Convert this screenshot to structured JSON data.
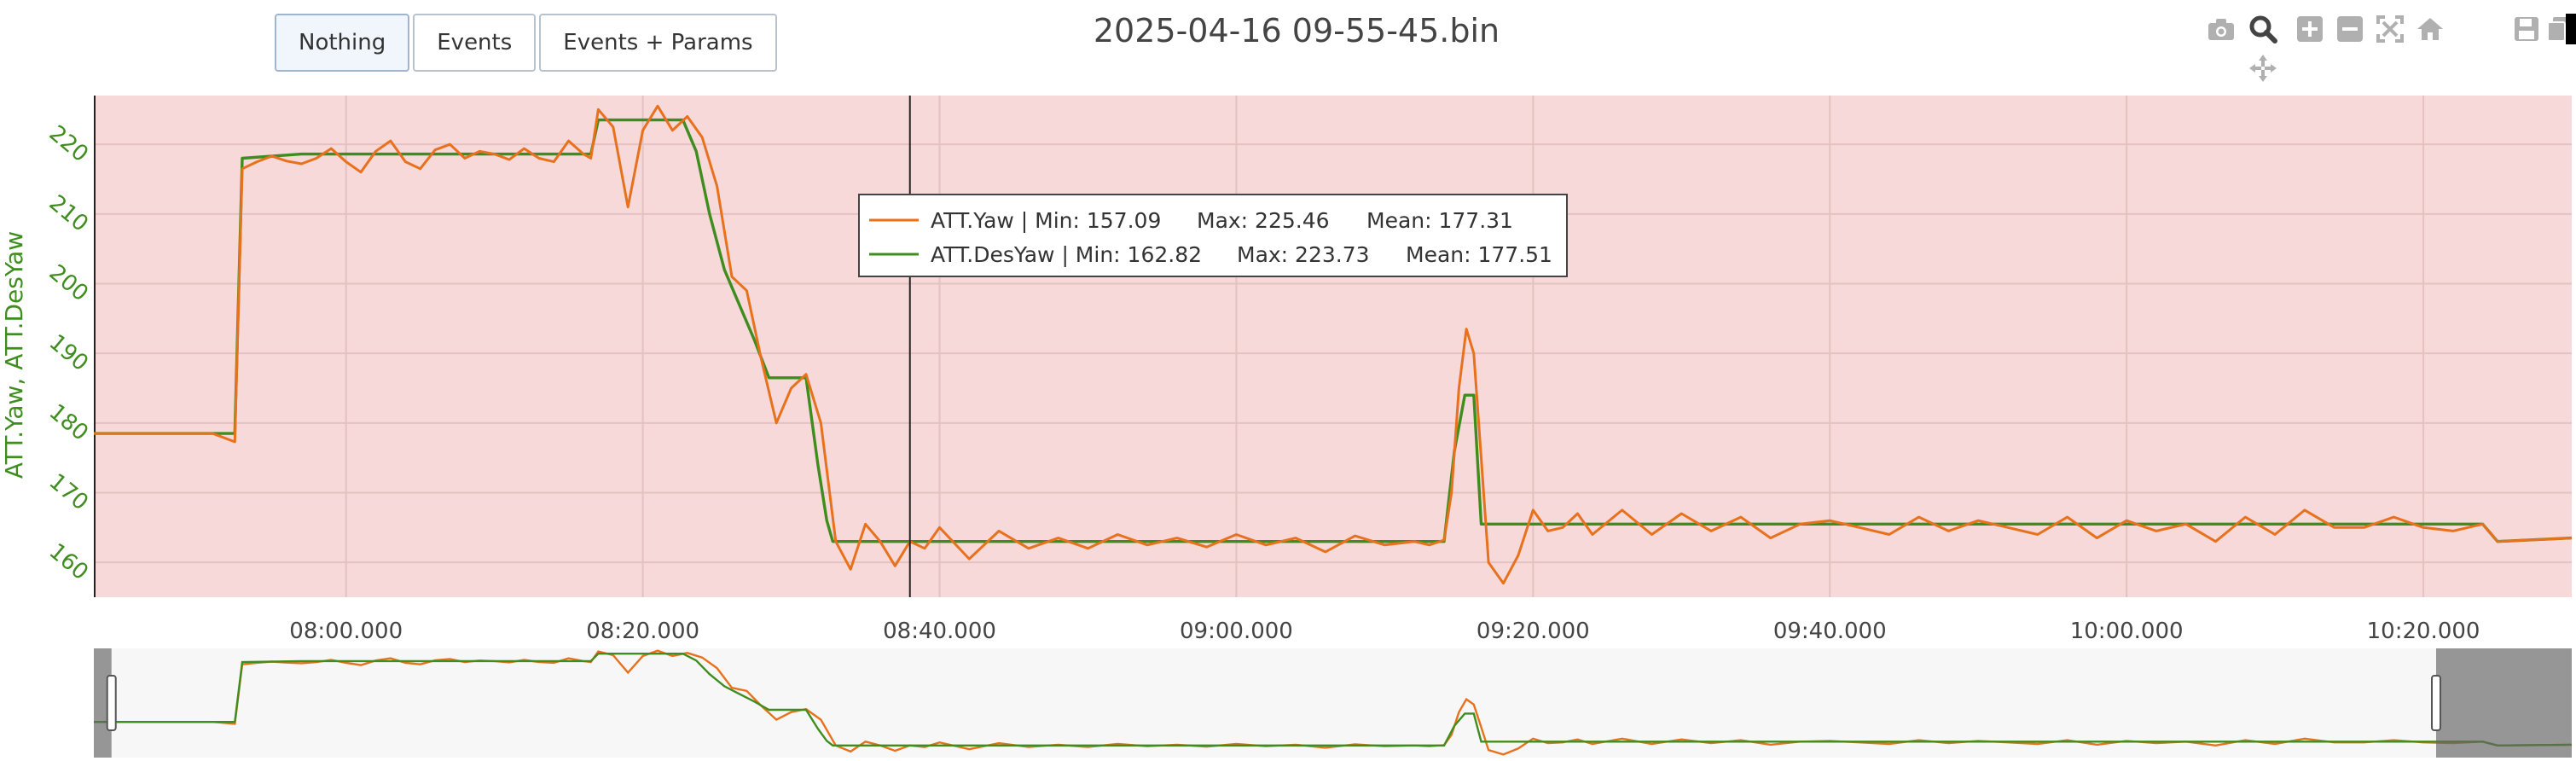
{
  "toolbar": {
    "buttons": [
      {
        "label": "Nothing",
        "active": true
      },
      {
        "label": "Events",
        "active": false
      },
      {
        "label": "Events + Params",
        "active": false
      }
    ]
  },
  "modebar": {
    "icons": [
      "camera-icon",
      "zoom-icon",
      "zoom-in-icon",
      "zoom-out-icon",
      "autoscale-icon",
      "home-icon",
      "save-icon",
      "copy-icon",
      "pan-icon"
    ]
  },
  "chart_data": {
    "type": "line",
    "title": "2025-04-16 09-55-45.bin",
    "xlabel": "",
    "ylabel": "ATT.Yaw, ATT.DesYaw",
    "x_unit": "seconds",
    "xlim": [
      466,
      1228
    ],
    "ylim": [
      155,
      227
    ],
    "x_tick_labels": [
      "08:00.000",
      "08:20.000",
      "08:40.000",
      "09:00.000",
      "09:20.000",
      "09:40.000",
      "10:00.000",
      "10:20.000"
    ],
    "x_tick_values": [
      480,
      500,
      520,
      540,
      560,
      580,
      600,
      620
    ],
    "y_ticks": [
      160,
      170,
      180,
      190,
      200,
      210,
      220
    ],
    "grid": true,
    "background": "#f6d9d8",
    "cursor_x": 518,
    "legend": {
      "placement": "top-center",
      "entries": [
        {
          "name": "ATT.Yaw",
          "min": "157.09",
          "max": "225.46",
          "mean": "177.31",
          "min_label": "Min:",
          "max_label": "Max:",
          "mean_label": "Mean:",
          "color": "#e8711d"
        },
        {
          "name": "ATT.DesYaw",
          "min": "162.82",
          "max": "223.73",
          "mean": "177.51",
          "min_label": "Min:",
          "max_label": "Max:",
          "mean_label": "Mean:",
          "color": "#3f8d1f"
        }
      ]
    },
    "series": [
      {
        "name": "ATT.DesYaw",
        "color": "#3f8d1f",
        "x": [
          463,
          472.5,
          473.0,
          477,
          490,
          496.5,
          497.0,
          502.7,
          503.6,
          504.5,
          505.5,
          506.3,
          507.5,
          508.5,
          510.0,
          511.0,
          511.8,
          512.4,
          512.8,
          554.0,
          554.7,
          555.4,
          556.0,
          556.5,
          572,
          620,
          624,
          625.0,
          630
        ],
        "y": [
          178.5,
          178.5,
          218.0,
          218.6,
          218.6,
          218.6,
          223.5,
          223.5,
          219.0,
          210.0,
          202.0,
          198.0,
          192.0,
          186.5,
          186.5,
          186.5,
          174.0,
          166.0,
          163.0,
          163.0,
          176.0,
          184.0,
          184.0,
          165.5,
          165.5,
          165.5,
          165.5,
          163.0,
          163.5
        ]
      },
      {
        "name": "ATT.Yaw",
        "color": "#e8711d",
        "x": [
          463,
          471,
          472.5,
          473.0,
          474,
          475,
          476,
          477,
          478,
          479,
          480,
          481,
          482,
          483,
          484,
          485,
          486,
          487,
          488,
          489,
          490,
          491,
          492,
          493,
          494,
          495,
          496,
          496.5,
          497.0,
          498,
          499,
          500,
          501,
          502,
          503,
          504,
          505,
          506,
          507,
          508,
          509,
          510,
          511,
          512,
          513,
          514,
          515,
          516,
          517,
          518,
          519,
          520,
          522,
          524,
          526,
          528,
          530,
          532,
          534,
          536,
          538,
          540,
          542,
          544,
          546,
          548,
          550,
          552,
          553,
          554,
          554.5,
          555,
          555.5,
          556.0,
          556.5,
          557,
          558,
          559,
          560,
          561,
          562,
          563,
          564,
          566,
          568,
          570,
          572,
          574,
          576,
          578,
          580,
          582,
          584,
          586,
          588,
          590,
          592,
          594,
          596,
          598,
          600,
          602,
          604,
          606,
          608,
          610,
          612,
          614,
          616,
          618,
          620,
          622,
          624,
          625,
          630
        ],
        "y": [
          178.5,
          178.5,
          177.3,
          216.5,
          217.5,
          218.3,
          217.6,
          217.2,
          218.0,
          219.4,
          217.5,
          216.0,
          219.0,
          220.5,
          217.5,
          216.5,
          219.2,
          220.0,
          218.0,
          219.0,
          218.6,
          217.8,
          219.4,
          218.0,
          217.5,
          220.5,
          218.6,
          218.0,
          225.0,
          222.5,
          211.0,
          222.0,
          225.5,
          222.0,
          224.0,
          221.0,
          214.0,
          201.0,
          199.0,
          189.0,
          180.0,
          185.0,
          187.0,
          180.0,
          163.0,
          159.0,
          165.5,
          163.0,
          159.5,
          163.0,
          162.0,
          165.0,
          160.5,
          164.5,
          162.0,
          163.5,
          162.0,
          164.0,
          162.5,
          163.5,
          162.2,
          164.0,
          162.5,
          163.5,
          161.5,
          163.8,
          162.5,
          163.0,
          162.5,
          163.2,
          170.0,
          185.0,
          193.5,
          190.0,
          175.0,
          160.0,
          157.0,
          161.0,
          167.5,
          164.5,
          165.0,
          167.0,
          164.0,
          167.5,
          164.0,
          167.0,
          164.5,
          166.5,
          163.5,
          165.5,
          166.0,
          165.0,
          164.0,
          166.5,
          164.5,
          166.0,
          165.0,
          164.0,
          166.5,
          163.5,
          166.0,
          164.5,
          165.5,
          163.0,
          166.5,
          164.0,
          167.5,
          165.0,
          165.0,
          166.5,
          165.0,
          164.5,
          165.5,
          163.0,
          163.5
        ]
      }
    ],
    "range_slider": {
      "x_range": [
        463,
        630
      ],
      "selected": [
        466,
        1228
      ]
    }
  }
}
